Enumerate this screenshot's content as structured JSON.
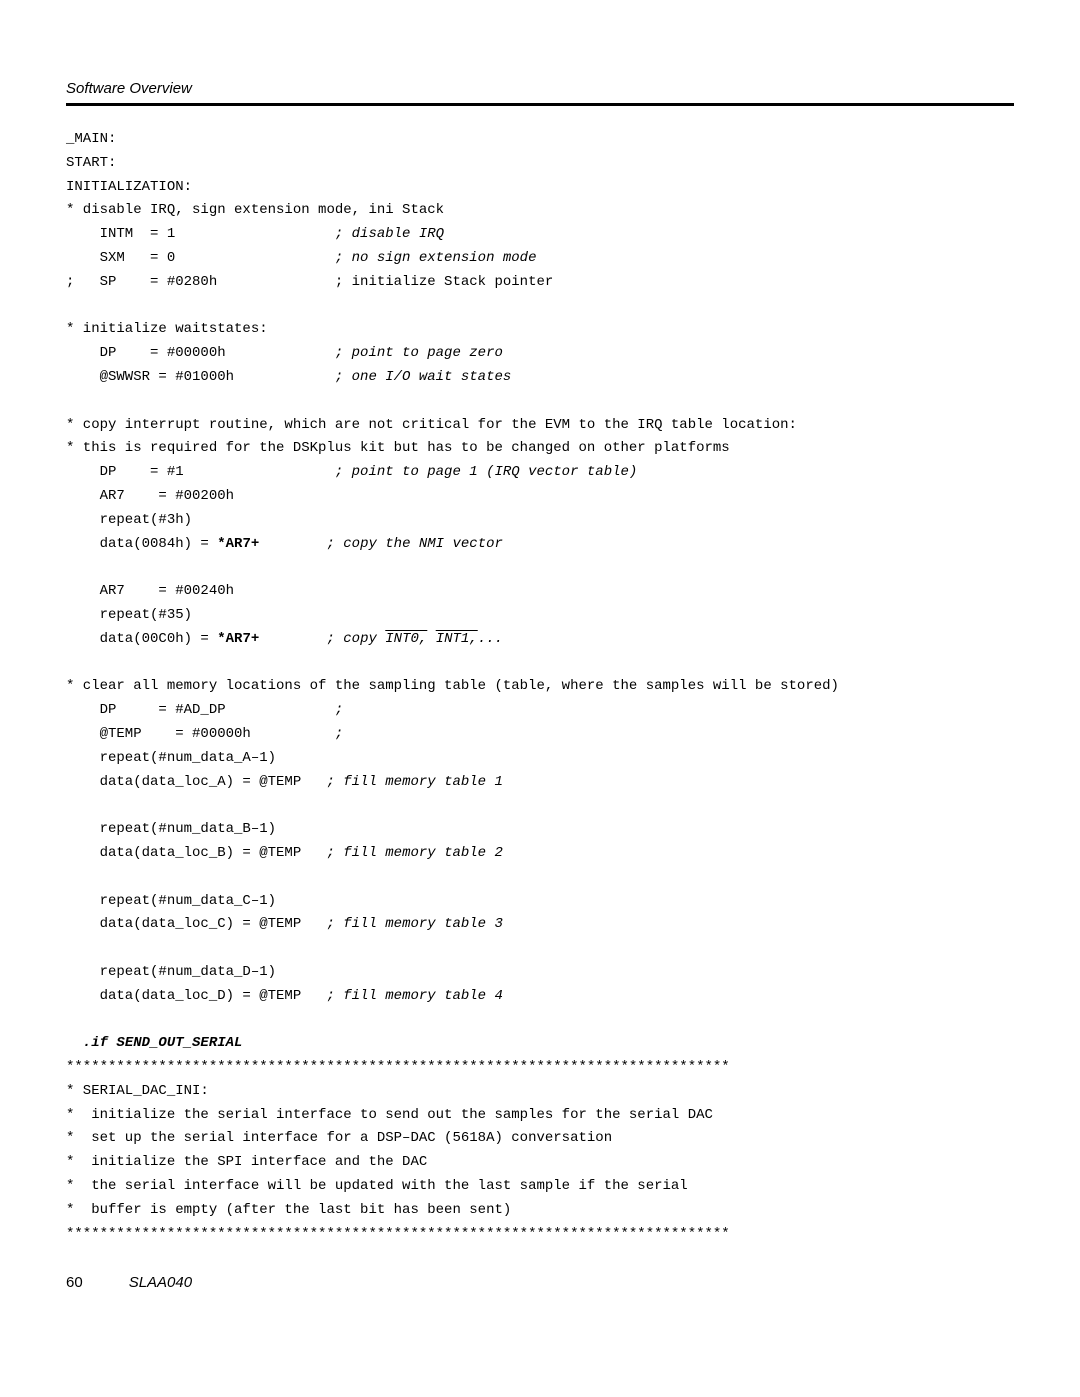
{
  "header": {
    "title": "Software Overview"
  },
  "code": {
    "l01": "_MAIN:",
    "l02": "START:",
    "l03": "INITIALIZATION:",
    "l04": "* disable IRQ, sign extension mode, ini Stack",
    "l05a": "    INTM  = 1                   ",
    "l05b": "; disable IRQ",
    "l06a": "    SXM   = 0                   ",
    "l06b": "; no sign extension mode",
    "l07": ";   SP    = #0280h              ; initialize Stack pointer",
    "blank1": "",
    "l08": "* initialize waitstates:",
    "l09a": "    DP    = #00000h             ",
    "l09b": "; point to page zero",
    "l10a": "    @SWWSR = #01000h            ",
    "l10b": "; one I/O wait states",
    "blank2": "",
    "l11": "* copy interrupt routine, which are not critical for the EVM to the IRQ table location:",
    "l12": "* this is required for the DSKplus kit but has to be changed on other platforms",
    "l13a": "    DP    = #1                  ",
    "l13b": "; point to page 1 (IRQ vector table)",
    "l14": "    AR7    = #00200h",
    "l15": "    repeat(#3h)",
    "l16a": "    data(0084h) = ",
    "l16b": "*AR7+",
    "l16c": "        ",
    "l16d": "; copy the NMI vector",
    "blank3": "",
    "l17": "    AR7    = #00240h",
    "l18": "    repeat(#35)",
    "l19a": "    data(00C0h) = ",
    "l19b": "*AR7+",
    "l19c": "        ",
    "l19d": "; copy ",
    "l19e": "INT0,",
    "l19f": " ",
    "l19g": "INT1,",
    "l19h": "...",
    "blank4": "",
    "l20": "* clear all memory locations of the sampling table (table, where the samples will be stored)",
    "l21a": "    DP     = #AD_DP             ",
    "l21b": ";",
    "l22a": "    @TEMP    = #00000h          ",
    "l22b": ";",
    "l23": "    repeat(#num_data_A–1)",
    "l24a": "    data(data_loc_A) = @TEMP   ",
    "l24b": "; fill memory table 1",
    "blank5": "",
    "l25": "    repeat(#num_data_B–1)",
    "l26a": "    data(data_loc_B) = @TEMP   ",
    "l26b": "; fill memory table 2",
    "blank6": "",
    "l27": "    repeat(#num_data_C–1)",
    "l28a": "    data(data_loc_C) = @TEMP   ",
    "l28b": "; fill memory table 3",
    "blank7": "",
    "l29": "    repeat(#num_data_D–1)",
    "l30a": "    data(data_loc_D) = @TEMP   ",
    "l30b": "; fill memory table 4",
    "blank8": "",
    "l31a": "  .if ",
    "l31b": "SEND_OUT_SERIAL",
    "l32": "*******************************************************************************",
    "l33": "* SERIAL_DAC_INI:",
    "l34": "*  initialize the serial interface to send out the samples for the serial DAC",
    "l35": "*  set up the serial interface for a DSP–DAC (5618A) conversation",
    "l36": "*  initialize the SPI interface and the DAC",
    "l37": "*  the serial interface will be updated with the last sample if the serial",
    "l38": "*  buffer is empty (after the last bit has been sent)",
    "l39": "*******************************************************************************"
  },
  "footer": {
    "page": "60",
    "docid": "SLAA040"
  }
}
